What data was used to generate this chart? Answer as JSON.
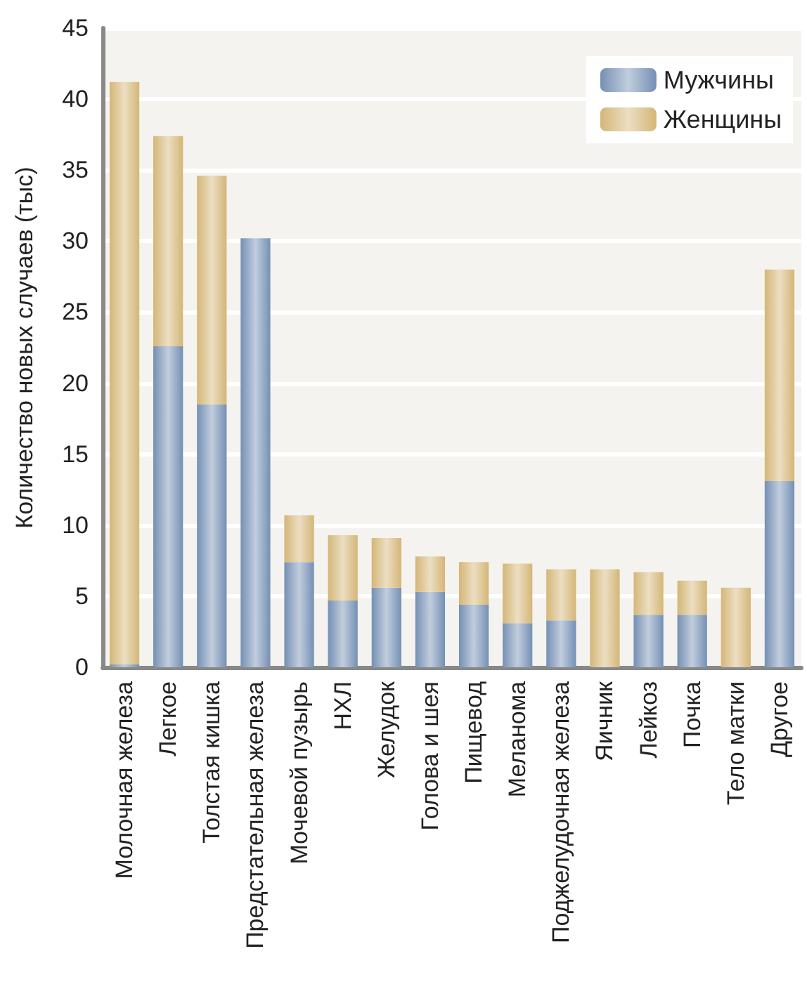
{
  "chart_data": {
    "type": "bar",
    "stacked": true,
    "ylabel": "Количество новых случаев (тыс)",
    "categories": [
      "Молочная железа",
      "Легкое",
      "Толстая кишка",
      "Предстательная железа",
      "Мочевой пузырь",
      "НХЛ",
      "Желудок",
      "Голова и шея",
      "Пищевод",
      "Меланома",
      "Поджелудочная железа",
      "Яичник",
      "Лейкоз",
      "Почка",
      "Тело матки",
      "Другое"
    ],
    "series": [
      {
        "name": "Мужчины",
        "color": "#7590b4",
        "values": [
          0.2,
          22.6,
          18.5,
          30.2,
          7.4,
          4.7,
          5.6,
          5.3,
          4.4,
          3.1,
          3.3,
          null,
          3.7,
          3.7,
          null,
          13.1
        ]
      },
      {
        "name": "Женщины",
        "color": "#d4b677",
        "values": [
          41.0,
          14.8,
          16.1,
          null,
          3.3,
          4.6,
          3.5,
          2.5,
          3.0,
          4.2,
          3.6,
          6.9,
          3.0,
          2.4,
          5.6,
          14.9
        ]
      }
    ],
    "ylim": [
      0,
      45
    ],
    "yticks": [
      0,
      5,
      10,
      15,
      20,
      25,
      30,
      35,
      40,
      45
    ],
    "grid": "y",
    "legend": "top right"
  }
}
